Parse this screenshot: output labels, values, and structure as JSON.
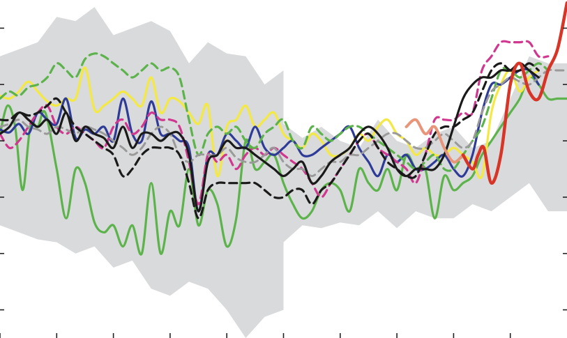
{
  "chart_data": {
    "type": "line",
    "xlim": [
      -1000,
      2000
    ],
    "ylim": [
      -1.4,
      1.0
    ],
    "x_ticks": [
      -1000,
      -700,
      -400,
      -100,
      200,
      500,
      800,
      1100,
      1400,
      1700
    ],
    "y_ticks": [
      -1.2,
      -0.8,
      -0.4,
      0.0,
      0.4,
      0.8
    ],
    "grid": false,
    "legend": "none",
    "colors": {
      "band": "#d9dadb",
      "black_solid": "#1a1a1a",
      "black_dashed": "#1a1a1a",
      "grey_dashed": "#9a9a9a",
      "blue": "#2e3b97",
      "yellow": "#f4e842",
      "green_solid": "#5db34b",
      "green_dashed": "#5db34b",
      "magenta_dashed": "#d0378f",
      "salmon": "#e8957a",
      "red": "#d63528"
    },
    "band": {
      "x": [
        -1000,
        -900,
        -800,
        -700,
        -600,
        -500,
        -400,
        -300,
        -200,
        -100,
        0,
        100,
        200,
        300,
        400,
        500,
        500,
        600,
        700,
        800,
        900,
        1000,
        1100,
        1200,
        1300,
        1400,
        1500,
        1600,
        1700,
        1800,
        1900,
        2000
      ],
      "upper": [
        0.6,
        0.65,
        0.7,
        0.88,
        0.85,
        0.95,
        0.75,
        0.8,
        0.85,
        0.78,
        0.55,
        0.7,
        0.62,
        0.6,
        0.4,
        0.5,
        0.12,
        0.02,
        0.1,
        0.0,
        -0.05,
        0.15,
        0.0,
        -0.05,
        0.05,
        0.1,
        -0.05,
        0.0,
        0.3,
        0.6,
        0.55,
        0.55
      ],
      "lower": [
        -0.6,
        -0.65,
        -0.7,
        -0.72,
        -0.8,
        -0.75,
        -0.9,
        -0.85,
        -1.05,
        -1.1,
        -1.0,
        -1.05,
        -1.2,
        -1.4,
        -1.25,
        -1.2,
        -0.72,
        -0.6,
        -0.62,
        -0.58,
        -0.6,
        -0.5,
        -0.62,
        -0.5,
        -0.55,
        -0.55,
        -0.45,
        -0.5,
        -0.4,
        -0.3,
        -0.5,
        -0.5
      ]
    },
    "series": [
      {
        "key": "green_solid",
        "style": "solid",
        "x": [
          -1000,
          -960,
          -920,
          -880,
          -840,
          -800,
          -760,
          -700,
          -650,
          -600,
          -550,
          -500,
          -450,
          -400,
          -350,
          -300,
          -250,
          -200,
          -150,
          -100,
          -50,
          0,
          50,
          100,
          150,
          200,
          250,
          300,
          350,
          400,
          450,
          500,
          550,
          600,
          650,
          700,
          750,
          800,
          850,
          900,
          950,
          1000,
          1050,
          1100,
          1150,
          1200,
          1250,
          1300,
          1350,
          1400,
          1450,
          1500,
          1550,
          1600,
          1650,
          1700,
          1750,
          1800,
          1850,
          1900,
          1950,
          2000
        ],
        "y": [
          0.05,
          0.25,
          0.1,
          -0.35,
          0.1,
          0.1,
          0.2,
          -0.2,
          -0.55,
          -0.2,
          -0.3,
          -0.58,
          -0.65,
          -0.6,
          -0.75,
          -0.6,
          -0.8,
          -0.3,
          -0.8,
          -0.5,
          -0.6,
          -0.2,
          -0.6,
          -0.35,
          -0.45,
          -0.75,
          -0.55,
          0.0,
          -0.2,
          -0.15,
          -0.1,
          -0.3,
          -0.45,
          -0.55,
          -0.5,
          -0.35,
          -0.3,
          -0.35,
          -0.5,
          -0.2,
          -0.3,
          -0.35,
          -0.2,
          -0.35,
          -0.1,
          -0.2,
          -0.2,
          -0.55,
          -0.25,
          -0.35,
          -0.3,
          -0.25,
          -0.1,
          0.0,
          0.1,
          0.2,
          0.3,
          0.45,
          0.4,
          0.3,
          0.3,
          0.3
        ]
      },
      {
        "key": "yellow",
        "style": "solid",
        "x": [
          -1000,
          -950,
          -900,
          -850,
          -800,
          -750,
          -700,
          -650,
          -600,
          -550,
          -500,
          -450,
          -400,
          -350,
          -300,
          -250,
          -200,
          -150,
          -100,
          -50,
          0,
          50,
          100,
          150,
          200,
          250,
          300,
          350,
          400,
          450,
          500,
          550,
          600,
          650,
          700,
          750,
          800,
          850,
          900,
          950,
          1000,
          1050,
          1100,
          1150,
          1200,
          1250,
          1300,
          1350,
          1400,
          1450,
          1500,
          1550,
          1600,
          1650,
          1700,
          1750,
          1800,
          1850
        ],
        "y": [
          0.32,
          0.3,
          0.35,
          0.42,
          0.35,
          0.28,
          0.25,
          0.3,
          0.3,
          0.52,
          0.22,
          0.25,
          0.3,
          0.35,
          0.3,
          0.25,
          0.45,
          0.2,
          0.3,
          0.28,
          0.2,
          0.12,
          0.25,
          -0.25,
          0.1,
          0.15,
          0.25,
          0.1,
          0.15,
          0.2,
          0.05,
          0.0,
          -0.05,
          0.05,
          0.0,
          -0.1,
          -0.1,
          -0.05,
          0.05,
          0.0,
          0.1,
          0.15,
          0.05,
          0.0,
          -0.1,
          -0.05,
          -0.1,
          -0.1,
          -0.05,
          -0.1,
          -0.15,
          -0.25,
          0.2,
          0.4,
          0.5,
          0.35,
          0.45,
          0.5
        ]
      },
      {
        "key": "blue",
        "style": "solid",
        "x": [
          -1000,
          -950,
          -900,
          -850,
          -800,
          -750,
          -700,
          -650,
          -600,
          -550,
          -500,
          -450,
          -400,
          -350,
          -300,
          -250,
          -200,
          -150,
          -100,
          -50,
          0,
          50,
          100,
          150,
          200,
          250,
          300,
          350,
          400,
          450,
          500,
          550,
          600,
          650,
          700,
          750,
          800,
          850,
          900,
          950,
          1000,
          1050,
          1100,
          1150,
          1200,
          1250,
          1300,
          1350,
          1400,
          1450,
          1500,
          1550,
          1600,
          1650,
          1700,
          1750,
          1800,
          1850
        ],
        "y": [
          0.08,
          0.06,
          0.12,
          0.05,
          0.2,
          0.15,
          0.12,
          0.3,
          0.02,
          0.08,
          0.05,
          0.1,
          0.0,
          0.3,
          0.05,
          0.0,
          0.28,
          0.05,
          0.05,
          0.0,
          -0.05,
          -0.5,
          -0.1,
          -0.1,
          0.05,
          0.0,
          -0.05,
          0.1,
          -0.05,
          -0.1,
          -0.05,
          0.0,
          -0.1,
          -0.1,
          -0.05,
          0.0,
          0.05,
          0.1,
          -0.05,
          -0.15,
          -0.25,
          -0.1,
          -0.15,
          -0.1,
          -0.2,
          -0.2,
          -0.15,
          -0.1,
          -0.2,
          -0.25,
          -0.1,
          0.2,
          0.4,
          0.4,
          0.45,
          0.5,
          0.5,
          0.4
        ]
      },
      {
        "key": "magenta_dashed",
        "style": "dashed",
        "x": [
          -1000,
          -950,
          -900,
          -850,
          -800,
          -750,
          -700,
          -650,
          -600,
          -550,
          -500,
          -450,
          -400,
          -350,
          -300,
          -250,
          -200,
          -150,
          -100,
          -50,
          0,
          50,
          100,
          150,
          200,
          250,
          300,
          350,
          400,
          450,
          500,
          550,
          600,
          650,
          700,
          750,
          800,
          850,
          900,
          950,
          1000,
          1050,
          1100,
          1150,
          1200,
          1250,
          1300,
          1350,
          1400,
          1450,
          1500,
          1550,
          1600,
          1650,
          1700,
          1750,
          1800,
          1850,
          1900
        ],
        "y": [
          0.05,
          -0.05,
          0.0,
          0.1,
          0.2,
          0.25,
          0.1,
          0.05,
          0.1,
          0.05,
          0.0,
          -0.05,
          0.1,
          0.15,
          0.05,
          0.1,
          0.2,
          0.15,
          0.15,
          0.1,
          -0.15,
          -0.45,
          -0.1,
          -0.15,
          -0.1,
          -0.2,
          -0.1,
          -0.05,
          -0.1,
          -0.05,
          -0.1,
          -0.15,
          -0.2,
          -0.3,
          -0.4,
          -0.3,
          -0.2,
          -0.1,
          0.0,
          0.05,
          -0.05,
          -0.1,
          -0.15,
          -0.2,
          -0.3,
          -0.1,
          0.15,
          0.15,
          0.15,
          0.2,
          0.2,
          0.5,
          0.6,
          0.7,
          0.7,
          0.7,
          0.7,
          0.6,
          0.6
        ]
      },
      {
        "key": "green_dashed",
        "style": "dashed",
        "x": [
          -1000,
          -950,
          -900,
          -850,
          -800,
          -750,
          -700,
          -650,
          -600,
          -550,
          -500,
          -450,
          -400,
          -350,
          -300,
          -250,
          -200,
          -150,
          -100,
          -50,
          0,
          50,
          100,
          150,
          200,
          250,
          300,
          350,
          400,
          450,
          500,
          550,
          600,
          650,
          700,
          750,
          800,
          850,
          900,
          950,
          1000,
          1050,
          1100,
          1150,
          1200,
          1250,
          1300,
          1350,
          1400,
          1450,
          1500,
          1550,
          1600,
          1650,
          1700,
          1750,
          1800,
          1850,
          1900
        ],
        "y": [
          0.3,
          0.35,
          0.32,
          0.38,
          0.4,
          0.45,
          0.55,
          0.5,
          0.45,
          0.58,
          0.62,
          0.6,
          0.55,
          0.5,
          0.45,
          0.5,
          0.55,
          0.5,
          0.52,
          0.45,
          0.15,
          -0.1,
          0.05,
          0.1,
          0.05,
          0.1,
          0.0,
          -0.05,
          0.05,
          0.1,
          0.15,
          0.0,
          -0.05,
          0.1,
          0.05,
          0.0,
          0.05,
          0.1,
          0.1,
          0.05,
          0.0,
          -0.05,
          -0.1,
          -0.15,
          -0.2,
          -0.15,
          -0.1,
          -0.2,
          -0.2,
          -0.1,
          0.0,
          0.1,
          0.3,
          0.5,
          0.5,
          0.45,
          0.5,
          0.55,
          0.5
        ]
      },
      {
        "key": "grey_dashed",
        "style": "dashed",
        "x": [
          -1000,
          -950,
          -900,
          -850,
          -800,
          -750,
          -700,
          -650,
          -600,
          -550,
          -500,
          -450,
          -400,
          -350,
          -300,
          -250,
          -200,
          -150,
          -100,
          -50,
          0,
          50,
          100,
          150,
          200,
          250,
          300,
          350,
          400,
          450,
          500,
          550,
          600,
          650,
          700,
          750,
          800,
          850,
          900,
          950,
          1000,
          1050,
          1100,
          1150,
          1200,
          1250,
          1300,
          1350,
          1400,
          1450,
          1500,
          1550,
          1600,
          1650,
          1700,
          1750,
          1800,
          1850,
          1900,
          1950,
          2000
        ],
        "y": [
          0.1,
          0.12,
          0.15,
          0.1,
          0.08,
          0.05,
          0.1,
          0.08,
          0.05,
          0.1,
          0.08,
          0.05,
          0.0,
          -0.05,
          -0.1,
          -0.05,
          0.05,
          0.1,
          0.05,
          -0.1,
          -0.15,
          -0.1,
          -0.1,
          -0.1,
          -0.05,
          -0.12,
          -0.15,
          -0.15,
          -0.1,
          -0.05,
          -0.15,
          -0.2,
          -0.2,
          -0.25,
          -0.2,
          -0.15,
          -0.15,
          -0.1,
          -0.1,
          -0.05,
          0.0,
          0.05,
          0.05,
          0.0,
          -0.05,
          -0.05,
          0.0,
          0.05,
          0.0,
          -0.05,
          0.0,
          0.2,
          0.35,
          0.4,
          0.45,
          0.42,
          0.4,
          0.45,
          0.5,
          0.5,
          0.5
        ]
      },
      {
        "key": "black_dashed",
        "style": "dashed",
        "x": [
          -1000,
          -950,
          -900,
          -850,
          -800,
          -750,
          -700,
          -650,
          -600,
          -550,
          -500,
          -450,
          -400,
          -350,
          -300,
          -250,
          -200,
          -150,
          -100,
          -50,
          0,
          50,
          100,
          150,
          200,
          250,
          300,
          350,
          400,
          450,
          500,
          550,
          600,
          650,
          700,
          750,
          800,
          850,
          900,
          950,
          1000,
          1050,
          1100,
          1150,
          1200,
          1250,
          1300,
          1350,
          1400,
          1450,
          1500,
          1550,
          1600,
          1650,
          1700,
          1750,
          1800,
          1850
        ],
        "y": [
          0.15,
          0.15,
          0.2,
          0.18,
          0.2,
          0.25,
          0.3,
          0.2,
          0.1,
          0.05,
          0.0,
          -0.05,
          -0.1,
          -0.25,
          -0.2,
          -0.1,
          -0.05,
          -0.05,
          -0.05,
          -0.1,
          -0.3,
          -0.55,
          -0.35,
          -0.3,
          -0.3,
          -0.3,
          -0.3,
          -0.3,
          -0.35,
          -0.4,
          -0.4,
          -0.35,
          -0.35,
          -0.45,
          -0.35,
          -0.3,
          -0.2,
          -0.1,
          0.0,
          0.05,
          -0.05,
          -0.15,
          -0.2,
          -0.25,
          -0.25,
          -0.1,
          0.05,
          0.1,
          0.1,
          0.15,
          0.2,
          0.35,
          0.5,
          0.55,
          0.5,
          0.5,
          0.55,
          0.5
        ]
      },
      {
        "key": "black_solid",
        "style": "solid",
        "x": [
          -1000,
          -950,
          -900,
          -850,
          -800,
          -750,
          -700,
          -650,
          -600,
          -550,
          -500,
          -450,
          -400,
          -350,
          -300,
          -250,
          -200,
          -150,
          -100,
          -50,
          0,
          50,
          100,
          150,
          200,
          250,
          300,
          350,
          400,
          450,
          500,
          550,
          600,
          650,
          700,
          750,
          800,
          850,
          900,
          950,
          1000,
          1050,
          1100,
          1150,
          1200,
          1250,
          1300,
          1350,
          1400,
          1450,
          1500,
          1550,
          1600,
          1650,
          1700,
          1750,
          1800,
          1850
        ],
        "y": [
          0.05,
          0.1,
          0.2,
          0.15,
          0.1,
          0.15,
          0.05,
          0.2,
          0.0,
          0.1,
          0.05,
          0.02,
          -0.05,
          0.1,
          -0.05,
          0.05,
          0.05,
          0.0,
          0.05,
          0.05,
          -0.1,
          -0.5,
          -0.15,
          -0.1,
          0.0,
          -0.05,
          -0.05,
          -0.1,
          -0.15,
          -0.2,
          -0.25,
          -0.2,
          -0.15,
          -0.3,
          -0.25,
          -0.15,
          -0.1,
          -0.05,
          0.05,
          0.1,
          0.05,
          -0.05,
          -0.2,
          -0.25,
          -0.2,
          -0.2,
          -0.2,
          -0.1,
          0.1,
          0.3,
          0.4,
          0.45,
          0.45,
          0.5,
          0.5,
          0.55,
          0.5,
          0.45
        ]
      },
      {
        "key": "salmon",
        "style": "solid",
        "x": [
          1150,
          1200,
          1250,
          1300,
          1350,
          1400,
          1450
        ],
        "y": [
          0.1,
          0.15,
          0.05,
          0.1,
          -0.05,
          -0.15,
          -0.1
        ]
      },
      {
        "key": "red",
        "style": "solid",
        "x": [
          1450,
          1500,
          1530,
          1560,
          1600,
          1650,
          1700,
          1750,
          1800,
          1850,
          1900,
          1950,
          2000
        ],
        "y": [
          -0.1,
          -0.2,
          -0.1,
          -0.05,
          -0.3,
          -0.1,
          0.4,
          0.55,
          0.35,
          0.3,
          0.5,
          0.65,
          0.98
        ]
      }
    ]
  }
}
